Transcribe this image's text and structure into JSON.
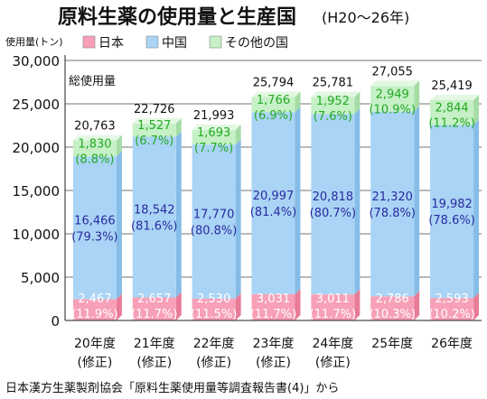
{
  "chart_data": {
    "type": "bar",
    "stacked": true,
    "title": "原料生薬の使用量と生産国",
    "subtitle": "(H20〜26年)",
    "ylabel": "使用量(トン)",
    "ylim": [
      0,
      30000
    ],
    "yticks": [
      0,
      5000,
      10000,
      15000,
      20000,
      25000,
      30000
    ],
    "ytick_labels": [
      "0",
      "5,000",
      "10,000",
      "15,000",
      "20,000",
      "25,000",
      "30,000"
    ],
    "total_label": "総使用量",
    "categories": [
      [
        "20年度",
        "(修正)"
      ],
      [
        "21年度",
        "(修正)"
      ],
      [
        "22年度",
        "(修正)"
      ],
      [
        "23年度",
        "(修正)"
      ],
      [
        "24年度",
        "(修正)"
      ],
      [
        "25年度",
        ""
      ],
      [
        "26年度",
        ""
      ]
    ],
    "legend": {
      "placement": "top",
      "entries": [
        "日本",
        "中国",
        "その他の国"
      ]
    },
    "series": [
      {
        "name": "日本",
        "color": "#f7a0b8",
        "values": [
          2467,
          2657,
          2530,
          3031,
          3011,
          2786,
          2593
        ],
        "labels": [
          "2,467",
          "2,657",
          "2,530",
          "3,031",
          "3,011",
          "2,786",
          "2,593"
        ],
        "pct": [
          "(11.9%)",
          "(11.7%)",
          "(11.5%)",
          "(11.7%)",
          "(11.7%)",
          "(10.3%)",
          "(10.2%)"
        ]
      },
      {
        "name": "中国",
        "color": "#a9d4f5",
        "values": [
          16466,
          18542,
          17770,
          20997,
          20818,
          21320,
          19982
        ],
        "labels": [
          "16,466",
          "18,542",
          "17,770",
          "20,997",
          "20,818",
          "21,320",
          "19,982"
        ],
        "pct": [
          "(79.3%)",
          "(81.6%)",
          "(80.8%)",
          "(81.4%)",
          "(80.7%)",
          "(78.8%)",
          "(78.6%)"
        ]
      },
      {
        "name": "その他の国",
        "color": "#c6f0c6",
        "values": [
          1830,
          1527,
          1693,
          1766,
          1952,
          2949,
          2844
        ],
        "labels": [
          "1,830",
          "1,527",
          "1,693",
          "1,766",
          "1,952",
          "2,949",
          "2,844"
        ],
        "pct": [
          "(8.8%)",
          "(6.7%)",
          "(7.7%)",
          "(6.9%)",
          "(7.6%)",
          "(10.9%)",
          "(11.2%)"
        ]
      }
    ],
    "totals": [
      20763,
      22726,
      21993,
      25794,
      25781,
      27055,
      25419
    ],
    "total_labels": [
      "20,763",
      "22,726",
      "21,993",
      "25,794",
      "25,781",
      "27,055",
      "25,419"
    ],
    "grid": true,
    "source": "日本漢方生薬製剤協会「原料生薬使用量等調査報告書(4)」から"
  }
}
